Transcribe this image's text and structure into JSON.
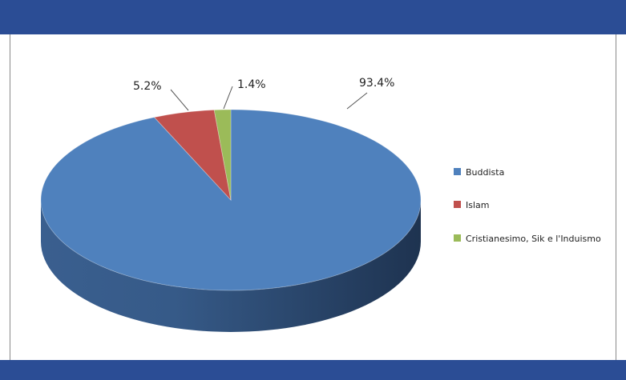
{
  "chart_data": {
    "type": "pie",
    "style": "3d",
    "title": "",
    "categories": [
      "Buddista",
      "Islam",
      "Cristianesimo, Sik e l'Induismo"
    ],
    "values": [
      93.4,
      5.2,
      1.4
    ],
    "data_labels": [
      "93.4%",
      "5.2%",
      "1.4%"
    ],
    "colors": [
      "#4f81bd",
      "#c0504d",
      "#9bbb59"
    ],
    "legend_position": "right"
  },
  "colors": {
    "header_bar": "#2b4d95",
    "frame_border": "#8a8a8a"
  }
}
